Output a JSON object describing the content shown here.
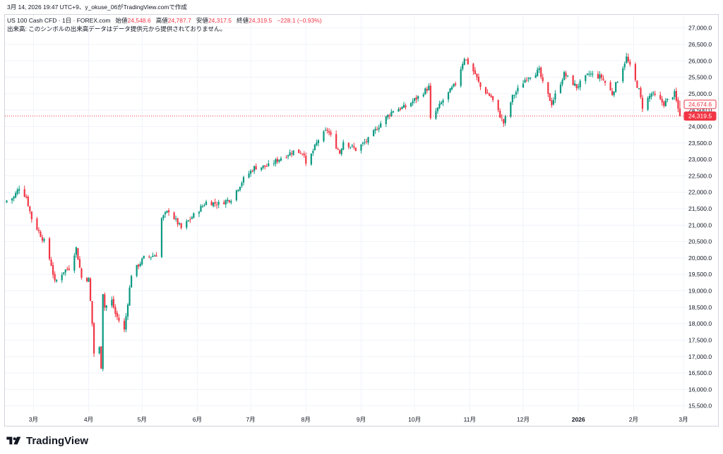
{
  "snapshot_caption": "3月 14, 2026 19:47 UTC+9、y_okuse_06がTradingView.comで作成",
  "footer_brand": "TradingView",
  "colors": {
    "up": "#089981",
    "down": "#f23645",
    "grid": "#f0f3fa",
    "border": "#d1d4dc",
    "text": "#131722"
  },
  "chart_data": {
    "type": "candlestick",
    "title": "US 100 Cash CFD · 1日 · FOREX.com",
    "ohlc_labels": {
      "open": "始値",
      "high": "高値",
      "low": "安値",
      "close": "終値"
    },
    "last_bar": {
      "open": "24,548.6",
      "high": "24,787.7",
      "low": "24,317.5",
      "close": "24,319.5",
      "change": "−228.1 (−0.93%)"
    },
    "volume_notice": "出来高: このシンボルの出来高データはデータ提供元から提供されておりません。",
    "ylim": [
      15300,
      27400
    ],
    "y_ticks": [
      15500,
      16000,
      16500,
      17000,
      17500,
      18000,
      18500,
      19000,
      19500,
      20000,
      20500,
      21000,
      21500,
      22000,
      22500,
      23000,
      23500,
      24000,
      24500,
      25000,
      25500,
      26000,
      26500,
      27000
    ],
    "y_tick_labels": [
      "15,500.0",
      "16,000.0",
      "16,500.0",
      "17,000.0",
      "17,500.0",
      "18,000.0",
      "18,500.0",
      "19,000.0",
      "19,500.0",
      "20,000.0",
      "20,500.0",
      "21,000.0",
      "21,500.0",
      "22,000.0",
      "22,500.0",
      "23,000.0",
      "23,500.0",
      "24,000.0",
      "24,500.0",
      "25,000.0",
      "25,500.0",
      "26,000.0",
      "26,500.0",
      "27,000.0"
    ],
    "x_range": [
      "2025-02-13",
      "2026-03-01"
    ],
    "x_ticks": [
      {
        "date": "2025-03-01",
        "label": "3月"
      },
      {
        "date": "2025-04-01",
        "label": "4月"
      },
      {
        "date": "2025-05-01",
        "label": "5月"
      },
      {
        "date": "2025-06-01",
        "label": "6月"
      },
      {
        "date": "2025-07-01",
        "label": "7月"
      },
      {
        "date": "2025-08-01",
        "label": "8月"
      },
      {
        "date": "2025-09-01",
        "label": "9月"
      },
      {
        "date": "2025-10-01",
        "label": "10月"
      },
      {
        "date": "2025-11-01",
        "label": "11月"
      },
      {
        "date": "2025-12-01",
        "label": "12月"
      },
      {
        "date": "2026-01-01",
        "label": "2026"
      },
      {
        "date": "2026-02-01",
        "label": "2月"
      },
      {
        "date": "2026-03-01",
        "label": "3月"
      }
    ],
    "price_labels": [
      {
        "value": 24674.6,
        "label": "24,674.6",
        "style": "outline"
      },
      {
        "value": 24319.5,
        "label": "24,319.5",
        "style": "filled"
      }
    ],
    "last_price_line": 24319.5,
    "close_path": [
      [
        "2025-02-14",
        21750
      ],
      [
        "2025-02-18",
        21850
      ],
      [
        "2025-02-21",
        22150
      ],
      [
        "2025-02-25",
        21850
      ],
      [
        "2025-02-28",
        21200
      ],
      [
        "2025-03-04",
        20800
      ],
      [
        "2025-03-07",
        20500
      ],
      [
        "2025-03-11",
        19800
      ],
      [
        "2025-03-13",
        19250
      ],
      [
        "2025-03-18",
        19600
      ],
      [
        "2025-03-21",
        19700
      ],
      [
        "2025-03-25",
        20300
      ],
      [
        "2025-03-28",
        19400
      ],
      [
        "2025-04-01",
        19350
      ],
      [
        "2025-04-03",
        18000
      ],
      [
        "2025-04-04",
        17100
      ],
      [
        "2025-04-07",
        17250
      ],
      [
        "2025-04-08",
        16700
      ],
      [
        "2025-04-09",
        18950
      ],
      [
        "2025-04-10",
        18500
      ],
      [
        "2025-04-14",
        18700
      ],
      [
        "2025-04-16",
        18300
      ],
      [
        "2025-04-21",
        17800
      ],
      [
        "2025-04-25",
        19500
      ],
      [
        "2025-05-02",
        20000
      ],
      [
        "2025-05-09",
        20100
      ],
      [
        "2025-05-12",
        21200
      ],
      [
        "2025-05-16",
        21450
      ],
      [
        "2025-05-23",
        20900
      ],
      [
        "2025-05-30",
        21300
      ],
      [
        "2025-06-06",
        21700
      ],
      [
        "2025-06-13",
        21650
      ],
      [
        "2025-06-20",
        21800
      ],
      [
        "2025-06-27",
        22400
      ],
      [
        "2025-07-03",
        22750
      ],
      [
        "2025-07-11",
        22800
      ],
      [
        "2025-07-18",
        23050
      ],
      [
        "2025-07-25",
        23250
      ],
      [
        "2025-07-31",
        23200
      ],
      [
        "2025-08-01",
        22800
      ],
      [
        "2025-08-08",
        23600
      ],
      [
        "2025-08-13",
        23900
      ],
      [
        "2025-08-20",
        23200
      ],
      [
        "2025-08-22",
        23550
      ],
      [
        "2025-08-29",
        23300
      ],
      [
        "2025-09-05",
        23600
      ],
      [
        "2025-09-12",
        24100
      ],
      [
        "2025-09-19",
        24500
      ],
      [
        "2025-09-26",
        24600
      ],
      [
        "2025-10-03",
        24900
      ],
      [
        "2025-10-09",
        25200
      ],
      [
        "2025-10-10",
        24200
      ],
      [
        "2025-10-17",
        24800
      ],
      [
        "2025-10-24",
        25300
      ],
      [
        "2025-10-29",
        26100
      ],
      [
        "2025-11-04",
        25600
      ],
      [
        "2025-11-07",
        25200
      ],
      [
        "2025-11-13",
        24900
      ],
      [
        "2025-11-20",
        24100
      ],
      [
        "2025-11-25",
        24900
      ],
      [
        "2025-12-03",
        25500
      ],
      [
        "2025-12-10",
        25700
      ],
      [
        "2025-12-12",
        25300
      ],
      [
        "2025-12-17",
        24700
      ],
      [
        "2025-12-24",
        25600
      ],
      [
        "2025-12-31",
        25200
      ],
      [
        "2026-01-07",
        25600
      ],
      [
        "2026-01-14",
        25500
      ],
      [
        "2026-01-20",
        25000
      ],
      [
        "2026-01-28",
        26100
      ],
      [
        "2026-02-04",
        25100
      ],
      [
        "2026-02-06",
        24600
      ],
      [
        "2026-02-11",
        25000
      ],
      [
        "2026-02-18",
        24700
      ],
      [
        "2026-02-24",
        25000
      ],
      [
        "2026-02-27",
        24300
      ]
    ]
  }
}
